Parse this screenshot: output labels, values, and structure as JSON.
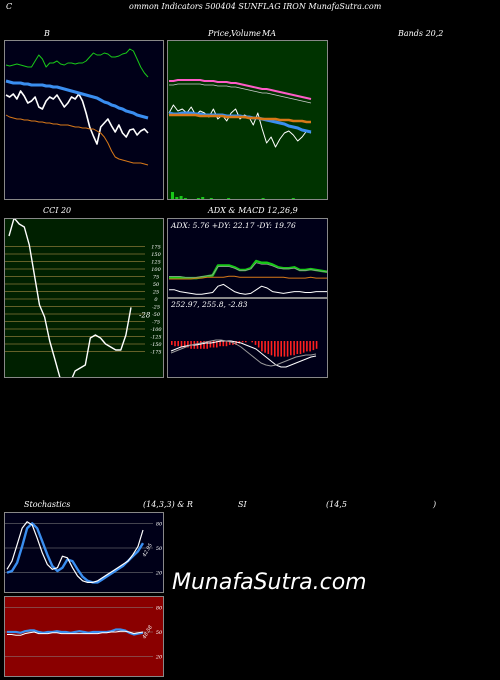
{
  "header": {
    "left": "C",
    "center": "ommon  Indicators 500404  SUNFLAG IRON  MunafaSutra.com"
  },
  "titles": {
    "bollinger": "B",
    "price": "Price,",
    "ma_overlap": "Volume",
    "ma": "MA",
    "bands": "Bands 20,2",
    "cci": "CCI 20",
    "adx_macd": "ADX  & MACD 12,26,9",
    "stoch": "Stochastics",
    "stoch_params": "(14,3,3) & R",
    "rsi": "SI",
    "rsi_params": "(14,5",
    "rsi_close": ")"
  },
  "adx_text": "ADX: 5.76  +DY: 22.17 -DY: 19.76",
  "macd_text": "252.97,  255.8,  -2.83",
  "cci_value": "-28",
  "watermark": "MunafaSutra.com",
  "colors": {
    "blue": "#3a8ef0",
    "green": "#18c818",
    "orange": "#d87818",
    "pink": "#ff5cc8",
    "darkgreen": "#003300",
    "darkred": "#8a0000",
    "navy": "#000018"
  },
  "chart_data": [
    {
      "type": "line",
      "title": "B",
      "series": [
        {
          "color": "white",
          "values": [
            94,
            96,
            93,
            98,
            90,
            95,
            102,
            100,
            96,
            106,
            108,
            100,
            96,
            98,
            94,
            100,
            106,
            102,
            96,
            98,
            93,
            100,
            112,
            126,
            135,
            143,
            126,
            122,
            118,
            125,
            131,
            124,
            132,
            136,
            129,
            128,
            134,
            130,
            128,
            132
          ]
        },
        {
          "color": "green",
          "values": [
            64,
            65,
            64,
            63,
            64,
            65,
            66,
            66,
            60,
            54,
            58,
            66,
            62,
            62,
            60,
            63,
            64,
            62,
            62,
            63,
            62,
            62,
            60,
            56,
            52,
            54,
            54,
            52,
            53,
            56,
            56,
            55,
            53,
            52,
            48,
            50,
            58,
            66,
            72,
            76
          ]
        },
        {
          "color": "blue",
          "values": [
            80,
            81,
            82,
            82,
            82,
            83,
            83,
            84,
            84,
            84,
            84,
            85,
            85,
            86,
            86,
            87,
            88,
            89,
            90,
            91,
            92,
            93,
            94,
            95,
            96,
            97,
            99,
            101,
            102,
            104,
            105,
            107,
            108,
            110,
            111,
            112,
            114,
            115,
            116,
            117
          ]
        },
        {
          "color": "orange",
          "values": [
            114,
            116,
            117,
            118,
            118,
            119,
            119,
            120,
            120,
            121,
            121,
            122,
            122,
            123,
            123,
            124,
            124,
            124,
            125,
            126,
            126,
            127,
            127,
            128,
            128,
            130,
            132,
            136,
            142,
            150,
            156,
            158,
            159,
            160,
            161,
            162,
            162,
            162,
            163,
            164
          ]
        }
      ]
    },
    {
      "type": "line",
      "title": "Price, Volume MA",
      "series": [
        {
          "color": "pink",
          "values": [
            80,
            80,
            79,
            79,
            79,
            79,
            79,
            79,
            80,
            80,
            80,
            81,
            81,
            81,
            82,
            82,
            83,
            84,
            85,
            86,
            87,
            88,
            88,
            89,
            90,
            91,
            92,
            93,
            94,
            95,
            96,
            97,
            98
          ]
        },
        {
          "color": "white",
          "values": [
            112,
            104,
            110,
            108,
            112,
            106,
            114,
            110,
            112,
            116,
            108,
            118,
            114,
            120,
            112,
            108,
            118,
            114,
            116,
            124,
            112,
            128,
            142,
            136,
            146,
            138,
            132,
            130,
            134,
            140,
            136,
            130,
            132
          ]
        },
        {
          "color": "blue",
          "values": [
            112,
            113,
            113,
            112,
            112,
            112,
            113,
            113,
            114,
            114,
            114,
            114,
            114,
            115,
            115,
            115,
            115,
            116,
            116,
            117,
            117,
            118,
            119,
            120,
            121,
            122,
            123,
            125,
            126,
            127,
            129,
            130,
            131
          ]
        },
        {
          "color": "orange",
          "values": [
            114,
            114,
            114,
            114,
            114,
            114,
            114,
            115,
            115,
            115,
            115,
            115,
            115,
            116,
            116,
            116,
            116,
            116,
            117,
            117,
            117,
            118,
            118,
            118,
            118,
            119,
            119,
            119,
            120,
            120,
            120,
            121,
            121
          ]
        }
      ],
      "volume": [
        8,
        3,
        4,
        2,
        1,
        1,
        2,
        3,
        1,
        2,
        1,
        1,
        1,
        2,
        1,
        1,
        1,
        1,
        1,
        1,
        1,
        2,
        1,
        1,
        1,
        1,
        1,
        1,
        2,
        1,
        1,
        1
      ]
    },
    {
      "type": "line",
      "title": "CCI 20",
      "yticks": [
        "175",
        "150",
        "125",
        "100",
        "75",
        "50",
        "25",
        "0",
        "-25",
        "-50",
        "-75",
        "-100",
        "-125",
        "-150",
        "-175"
      ],
      "values": [
        210,
        270,
        250,
        240,
        180,
        80,
        -20,
        -60,
        -140,
        -200,
        -260,
        -320,
        -280,
        -240,
        -230,
        -220,
        -130,
        -120,
        -130,
        -150,
        -160,
        -170,
        -170,
        -120,
        -28
      ]
    },
    {
      "type": "line",
      "title": "ADX & MACD 12,26,9",
      "series": [
        {
          "name": "+DY",
          "color": "green",
          "values": [
            22,
            22,
            22,
            21,
            21,
            21,
            22,
            23,
            24,
            35,
            35,
            35,
            33,
            30,
            30,
            32,
            40,
            38,
            38,
            36,
            33,
            32,
            32,
            33,
            30,
            30,
            31,
            30,
            29,
            28
          ]
        },
        {
          "name": "-DY",
          "color": "orange",
          "values": [
            20,
            20,
            20,
            20,
            20,
            21,
            21,
            22,
            22,
            22,
            22,
            23,
            23,
            22,
            22,
            22,
            22,
            22,
            22,
            22,
            22,
            22,
            21,
            21,
            21,
            21,
            22,
            21,
            21,
            21
          ]
        },
        {
          "name": "ADX",
          "color": "white",
          "values": [
            8,
            8,
            6,
            5,
            4,
            3,
            3,
            4,
            5,
            12,
            14,
            10,
            6,
            4,
            3,
            4,
            8,
            12,
            10,
            6,
            5,
            4,
            5,
            6,
            6,
            5,
            5,
            6,
            6,
            6
          ]
        }
      ],
      "histogram": [
        -3,
        -4,
        -4,
        -5,
        -5,
        -5,
        -6,
        -6,
        -6,
        -6,
        -6,
        -6,
        -5,
        -5,
        -5,
        -4,
        -4,
        -4,
        -3,
        -3,
        -3,
        -2,
        -1,
        -1,
        0,
        -1,
        -3,
        -5,
        -8,
        -9,
        -10,
        -11,
        -12,
        -12,
        -12,
        -12,
        -12,
        -11,
        -11,
        -10,
        -10,
        -9,
        -8,
        -8,
        -7,
        -6
      ]
    },
    {
      "type": "line",
      "title": "Stochastics (14,3,3)",
      "yticks": [
        "80",
        "50",
        "20"
      ],
      "series": [
        {
          "color": "blue",
          "values": [
            20,
            22,
            32,
            52,
            74,
            80,
            74,
            58,
            42,
            28,
            22,
            26,
            36,
            34,
            24,
            15,
            10,
            8,
            8,
            12,
            16,
            20,
            24,
            28,
            34,
            40,
            46,
            56
          ]
        },
        {
          "color": "white",
          "values": [
            24,
            34,
            54,
            74,
            82,
            78,
            62,
            44,
            30,
            24,
            26,
            40,
            38,
            26,
            16,
            10,
            8,
            8,
            10,
            14,
            18,
            22,
            26,
            30,
            34,
            42,
            52,
            72
          ]
        }
      ],
      "label": "42.95"
    },
    {
      "type": "line",
      "title": "RSI (14,5)",
      "yticks": [
        "80",
        "50",
        "20"
      ],
      "series": [
        {
          "color": "blue",
          "values": [
            50,
            50,
            50,
            49,
            51,
            52,
            52,
            50,
            49,
            50,
            50,
            51,
            50,
            50,
            49,
            50,
            51,
            50,
            49,
            50,
            50,
            50,
            50,
            51,
            53,
            53,
            52,
            49,
            47,
            48,
            49
          ]
        },
        {
          "color": "white",
          "values": [
            47,
            47,
            46,
            46,
            48,
            49,
            50,
            48,
            48,
            48,
            49,
            49,
            48,
            48,
            48,
            48,
            48,
            48,
            48,
            48,
            48,
            49,
            49,
            50,
            50,
            51,
            51,
            50,
            48,
            49,
            50
          ]
        }
      ],
      "label": "48.58"
    }
  ]
}
